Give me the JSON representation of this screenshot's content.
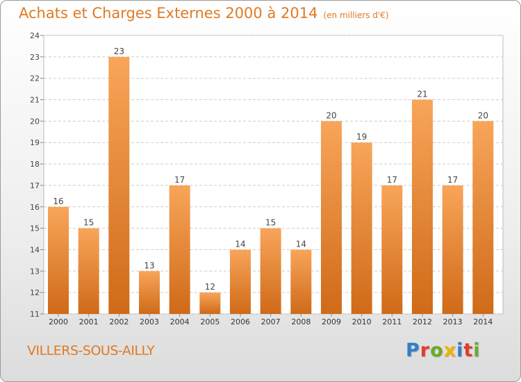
{
  "header": {
    "title": "Achats et Charges Externes 2000 à 2014",
    "unit": "(en milliers d'€)"
  },
  "footer": {
    "town": "VILLERS-SOUS-AILLY",
    "logo": "Proxiti",
    "logo_colors": [
      "#2f7fc8",
      "#e63a2b",
      "#6aaa2a",
      "#f0b400",
      "#2f7fc8",
      "#e63a2b",
      "#6aaa2a"
    ]
  },
  "chart_data": {
    "type": "bar",
    "title": "Achats et Charges Externes 2000 à 2014",
    "subtitle": "(en milliers d'€)",
    "xlabel": "",
    "ylabel": "",
    "categories": [
      "2000",
      "2001",
      "2002",
      "2003",
      "2004",
      "2005",
      "2006",
      "2007",
      "2008",
      "2009",
      "2010",
      "2011",
      "2012",
      "2013",
      "2014"
    ],
    "values": [
      16,
      15,
      23,
      13,
      17,
      12,
      14,
      15,
      14,
      20,
      19,
      17,
      21,
      17,
      20
    ],
    "ylim": [
      11,
      24
    ],
    "yticks": [
      "11",
      "12",
      "13",
      "14",
      "15",
      "16",
      "17",
      "18",
      "19",
      "20",
      "21",
      "22",
      "23",
      "24"
    ],
    "grid": true,
    "legend": "none",
    "bar_color": "#f08a2e"
  }
}
